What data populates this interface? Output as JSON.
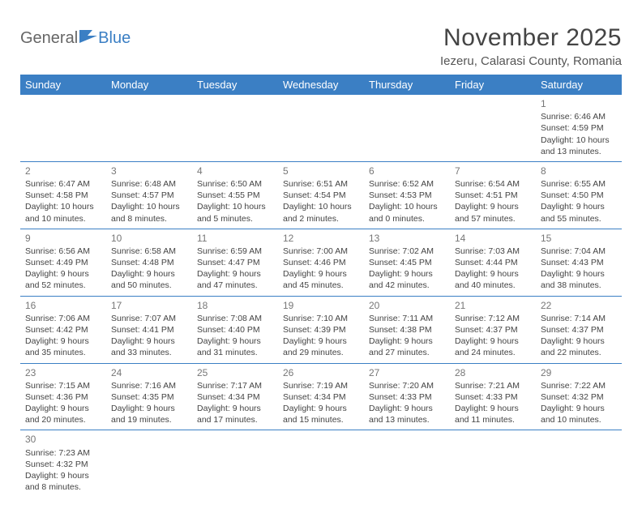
{
  "logo": {
    "part1": "General",
    "part2": "Blue"
  },
  "title": "November 2025",
  "location": "Iezeru, Calarasi County, Romania",
  "colors": {
    "header_bg": "#3b7fc4",
    "header_text": "#ffffff",
    "border": "#3b7fc4",
    "body_text": "#444444",
    "daynum": "#777777"
  },
  "weekdays": [
    "Sunday",
    "Monday",
    "Tuesday",
    "Wednesday",
    "Thursday",
    "Friday",
    "Saturday"
  ],
  "weeks": [
    [
      null,
      null,
      null,
      null,
      null,
      null,
      {
        "n": "1",
        "sr": "Sunrise: 6:46 AM",
        "ss": "Sunset: 4:59 PM",
        "d1": "Daylight: 10 hours",
        "d2": "and 13 minutes."
      }
    ],
    [
      {
        "n": "2",
        "sr": "Sunrise: 6:47 AM",
        "ss": "Sunset: 4:58 PM",
        "d1": "Daylight: 10 hours",
        "d2": "and 10 minutes."
      },
      {
        "n": "3",
        "sr": "Sunrise: 6:48 AM",
        "ss": "Sunset: 4:57 PM",
        "d1": "Daylight: 10 hours",
        "d2": "and 8 minutes."
      },
      {
        "n": "4",
        "sr": "Sunrise: 6:50 AM",
        "ss": "Sunset: 4:55 PM",
        "d1": "Daylight: 10 hours",
        "d2": "and 5 minutes."
      },
      {
        "n": "5",
        "sr": "Sunrise: 6:51 AM",
        "ss": "Sunset: 4:54 PM",
        "d1": "Daylight: 10 hours",
        "d2": "and 2 minutes."
      },
      {
        "n": "6",
        "sr": "Sunrise: 6:52 AM",
        "ss": "Sunset: 4:53 PM",
        "d1": "Daylight: 10 hours",
        "d2": "and 0 minutes."
      },
      {
        "n": "7",
        "sr": "Sunrise: 6:54 AM",
        "ss": "Sunset: 4:51 PM",
        "d1": "Daylight: 9 hours",
        "d2": "and 57 minutes."
      },
      {
        "n": "8",
        "sr": "Sunrise: 6:55 AM",
        "ss": "Sunset: 4:50 PM",
        "d1": "Daylight: 9 hours",
        "d2": "and 55 minutes."
      }
    ],
    [
      {
        "n": "9",
        "sr": "Sunrise: 6:56 AM",
        "ss": "Sunset: 4:49 PM",
        "d1": "Daylight: 9 hours",
        "d2": "and 52 minutes."
      },
      {
        "n": "10",
        "sr": "Sunrise: 6:58 AM",
        "ss": "Sunset: 4:48 PM",
        "d1": "Daylight: 9 hours",
        "d2": "and 50 minutes."
      },
      {
        "n": "11",
        "sr": "Sunrise: 6:59 AM",
        "ss": "Sunset: 4:47 PM",
        "d1": "Daylight: 9 hours",
        "d2": "and 47 minutes."
      },
      {
        "n": "12",
        "sr": "Sunrise: 7:00 AM",
        "ss": "Sunset: 4:46 PM",
        "d1": "Daylight: 9 hours",
        "d2": "and 45 minutes."
      },
      {
        "n": "13",
        "sr": "Sunrise: 7:02 AM",
        "ss": "Sunset: 4:45 PM",
        "d1": "Daylight: 9 hours",
        "d2": "and 42 minutes."
      },
      {
        "n": "14",
        "sr": "Sunrise: 7:03 AM",
        "ss": "Sunset: 4:44 PM",
        "d1": "Daylight: 9 hours",
        "d2": "and 40 minutes."
      },
      {
        "n": "15",
        "sr": "Sunrise: 7:04 AM",
        "ss": "Sunset: 4:43 PM",
        "d1": "Daylight: 9 hours",
        "d2": "and 38 minutes."
      }
    ],
    [
      {
        "n": "16",
        "sr": "Sunrise: 7:06 AM",
        "ss": "Sunset: 4:42 PM",
        "d1": "Daylight: 9 hours",
        "d2": "and 35 minutes."
      },
      {
        "n": "17",
        "sr": "Sunrise: 7:07 AM",
        "ss": "Sunset: 4:41 PM",
        "d1": "Daylight: 9 hours",
        "d2": "and 33 minutes."
      },
      {
        "n": "18",
        "sr": "Sunrise: 7:08 AM",
        "ss": "Sunset: 4:40 PM",
        "d1": "Daylight: 9 hours",
        "d2": "and 31 minutes."
      },
      {
        "n": "19",
        "sr": "Sunrise: 7:10 AM",
        "ss": "Sunset: 4:39 PM",
        "d1": "Daylight: 9 hours",
        "d2": "and 29 minutes."
      },
      {
        "n": "20",
        "sr": "Sunrise: 7:11 AM",
        "ss": "Sunset: 4:38 PM",
        "d1": "Daylight: 9 hours",
        "d2": "and 27 minutes."
      },
      {
        "n": "21",
        "sr": "Sunrise: 7:12 AM",
        "ss": "Sunset: 4:37 PM",
        "d1": "Daylight: 9 hours",
        "d2": "and 24 minutes."
      },
      {
        "n": "22",
        "sr": "Sunrise: 7:14 AM",
        "ss": "Sunset: 4:37 PM",
        "d1": "Daylight: 9 hours",
        "d2": "and 22 minutes."
      }
    ],
    [
      {
        "n": "23",
        "sr": "Sunrise: 7:15 AM",
        "ss": "Sunset: 4:36 PM",
        "d1": "Daylight: 9 hours",
        "d2": "and 20 minutes."
      },
      {
        "n": "24",
        "sr": "Sunrise: 7:16 AM",
        "ss": "Sunset: 4:35 PM",
        "d1": "Daylight: 9 hours",
        "d2": "and 19 minutes."
      },
      {
        "n": "25",
        "sr": "Sunrise: 7:17 AM",
        "ss": "Sunset: 4:34 PM",
        "d1": "Daylight: 9 hours",
        "d2": "and 17 minutes."
      },
      {
        "n": "26",
        "sr": "Sunrise: 7:19 AM",
        "ss": "Sunset: 4:34 PM",
        "d1": "Daylight: 9 hours",
        "d2": "and 15 minutes."
      },
      {
        "n": "27",
        "sr": "Sunrise: 7:20 AM",
        "ss": "Sunset: 4:33 PM",
        "d1": "Daylight: 9 hours",
        "d2": "and 13 minutes."
      },
      {
        "n": "28",
        "sr": "Sunrise: 7:21 AM",
        "ss": "Sunset: 4:33 PM",
        "d1": "Daylight: 9 hours",
        "d2": "and 11 minutes."
      },
      {
        "n": "29",
        "sr": "Sunrise: 7:22 AM",
        "ss": "Sunset: 4:32 PM",
        "d1": "Daylight: 9 hours",
        "d2": "and 10 minutes."
      }
    ],
    [
      {
        "n": "30",
        "sr": "Sunrise: 7:23 AM",
        "ss": "Sunset: 4:32 PM",
        "d1": "Daylight: 9 hours",
        "d2": "and 8 minutes."
      },
      null,
      null,
      null,
      null,
      null,
      null
    ]
  ]
}
